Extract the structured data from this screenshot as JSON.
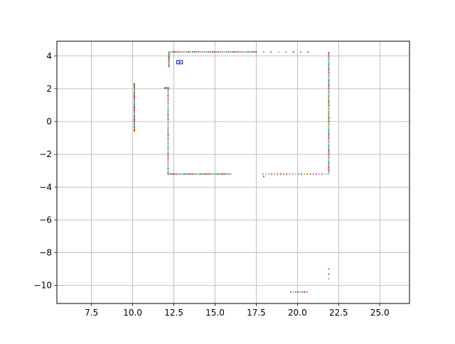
{
  "chart_data": {
    "type": "scatter",
    "title": "",
    "xlabel": "",
    "ylabel": "",
    "xlim": [
      5.4,
      26.8
    ],
    "ylim": [
      -11.1,
      4.9
    ],
    "xticks": [
      7.5,
      10.0,
      12.5,
      15.0,
      17.5,
      20.0,
      22.5,
      25.0
    ],
    "xtick_labels": [
      "7.5",
      "10.0",
      "12.5",
      "15.0",
      "17.5",
      "20.0",
      "22.5",
      "25.0"
    ],
    "yticks": [
      4,
      2,
      0,
      -2,
      -4,
      -6,
      -8,
      -10
    ],
    "ytick_labels": [
      "4",
      "2",
      "0",
      "−2",
      "−4",
      "−6",
      "−8",
      "−10"
    ],
    "grid": true,
    "legend": "none",
    "point_colors": [
      "#1f77b4",
      "#ff7f0e",
      "#2ca02c",
      "#d62728",
      "#9467bd",
      "#8c564b",
      "#e377c2",
      "#7f7f7f",
      "#bcbd22",
      "#17becf"
    ],
    "segments": [
      {
        "axis": "h",
        "fixed": 4.25,
        "from": 12.2,
        "to": 17.5,
        "step": 0.12
      },
      {
        "axis": "h",
        "fixed": 4.25,
        "from": 17.5,
        "to": 21.0,
        "step": 0.45
      },
      {
        "axis": "v",
        "fixed": 21.9,
        "from": 4.2,
        "to": -3.1,
        "step": 0.1
      },
      {
        "axis": "h",
        "fixed": -3.2,
        "from": 17.9,
        "to": 21.9,
        "step": 0.18
      },
      {
        "axis": "h",
        "fixed": -3.2,
        "from": 12.15,
        "to": 16.0,
        "step": 0.1
      },
      {
        "axis": "v",
        "fixed": 12.15,
        "from": 2.05,
        "to": -3.2,
        "step": 0.12
      },
      {
        "axis": "h",
        "fixed": 2.05,
        "from": 11.95,
        "to": 12.2,
        "step": 0.06
      },
      {
        "axis": "v",
        "fixed": 12.2,
        "from": 4.25,
        "to": 3.3,
        "step": 0.07
      },
      {
        "axis": "v",
        "fixed": 10.1,
        "from": 2.3,
        "to": -0.6,
        "step": 0.07
      },
      {
        "axis": "v",
        "fixed": 21.9,
        "from": -9.0,
        "to": -9.6,
        "step": 0.3
      },
      {
        "axis": "h",
        "fixed": -10.4,
        "from": 19.6,
        "to": 20.6,
        "step": 0.14
      }
    ],
    "extra_points": [
      [
        17.95,
        -3.35
      ]
    ],
    "marker_box": {
      "x": 12.85,
      "y": 3.62,
      "w": 0.35,
      "h": 0.2,
      "color": "#0000cc"
    }
  }
}
